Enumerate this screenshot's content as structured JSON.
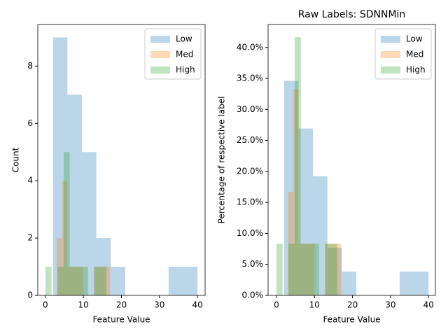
{
  "chart_data": [
    {
      "type": "histogram",
      "y_label": "Count",
      "x_label": "Feature Value",
      "xlim": [
        -2,
        42
      ],
      "ylim": [
        0,
        9.45
      ],
      "xticks": [
        0,
        10,
        20,
        30,
        40
      ],
      "yticks": [
        0,
        2,
        4,
        6,
        8
      ],
      "legend": "upper right",
      "series": [
        {
          "name": "Low",
          "color": "#1f77b4",
          "bins": [
            2,
            5.8,
            9.6,
            13.4,
            17.2,
            21,
            24.8,
            28.6,
            32.4,
            36.2,
            40
          ],
          "values": [
            9,
            7,
            5,
            2,
            1,
            0,
            0,
            0,
            1,
            1
          ]
        },
        {
          "name": "Med",
          "color": "#ff7f0e",
          "bins": [
            3,
            4.4,
            5.8,
            7.2,
            8.6,
            10,
            11.4,
            12.8,
            14.2,
            15.6,
            17
          ],
          "values": [
            2,
            4,
            1,
            1,
            1,
            0,
            0,
            1,
            1,
            1
          ]
        },
        {
          "name": "High",
          "color": "#2ca02c",
          "bins": [
            0,
            1.6,
            3.2,
            4.8,
            6.4,
            8,
            9.6,
            11.2,
            12.8,
            14.4,
            16
          ],
          "values": [
            1,
            0,
            1,
            5,
            1,
            1,
            1,
            0,
            1,
            1
          ]
        }
      ]
    },
    {
      "type": "histogram",
      "title": "Raw Labels: SDNNMin",
      "y_label": "Percentage of respective label",
      "x_label": "Feature Value",
      "xlim": [
        -2.2,
        41.8
      ],
      "ylim": [
        0,
        43.7
      ],
      "xticks": [
        0,
        10,
        20,
        30,
        40
      ],
      "yticks": [
        {
          "value": 0,
          "label": "0.0%"
        },
        {
          "value": 5,
          "label": "5.0%"
        },
        {
          "value": 10,
          "label": "10.0%"
        },
        {
          "value": 15,
          "label": "15.0%"
        },
        {
          "value": 20,
          "label": "20.0%"
        },
        {
          "value": 25,
          "label": "25.0%"
        },
        {
          "value": 30,
          "label": "30.0%"
        },
        {
          "value": 35,
          "label": "35.0%"
        },
        {
          "value": 40,
          "label": "40.0%"
        }
      ],
      "legend": "upper right",
      "series": [
        {
          "name": "Low",
          "color": "#1f77b4",
          "bins": [
            2,
            5.8,
            9.6,
            13.4,
            17.2,
            21,
            24.8,
            28.6,
            32.4,
            36.2,
            40
          ],
          "values": [
            34.62,
            26.92,
            19.23,
            7.69,
            3.85,
            0,
            0,
            0,
            3.85,
            3.85
          ]
        },
        {
          "name": "Med",
          "color": "#ff7f0e",
          "bins": [
            3,
            4.4,
            5.8,
            7.2,
            8.6,
            10,
            11.4,
            12.8,
            14.2,
            15.6,
            17
          ],
          "values": [
            16.67,
            33.33,
            8.33,
            8.33,
            8.33,
            0,
            0,
            8.33,
            8.33,
            8.33
          ]
        },
        {
          "name": "High",
          "color": "#2ca02c",
          "bins": [
            0,
            1.6,
            3.2,
            4.8,
            6.4,
            8,
            9.6,
            11.2,
            12.8,
            14.4,
            16
          ],
          "values": [
            8.33,
            0,
            8.33,
            41.67,
            8.33,
            8.33,
            8.33,
            0,
            8.33,
            8.33
          ]
        }
      ]
    }
  ]
}
